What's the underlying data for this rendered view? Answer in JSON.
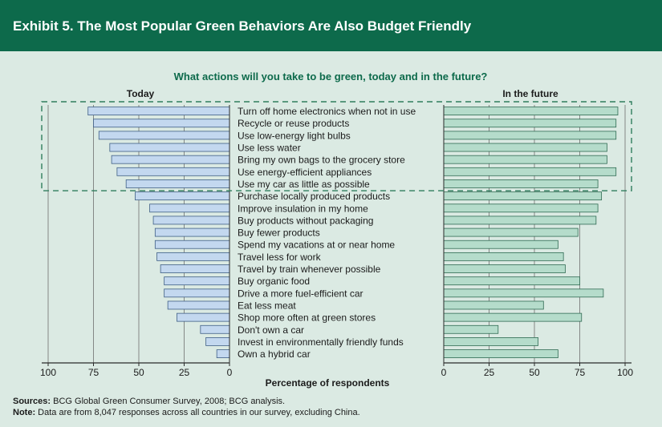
{
  "header": {
    "title": "Exhibit 5. The Most Popular Green Behaviors Are Also Budget Friendly"
  },
  "footer": {
    "sources_label": "Sources:",
    "sources_text": "BCG Global Green Consumer Survey, 2008; BCG analysis.",
    "note_label": "Note:",
    "note_text": "Data are from 8,047 responses across all countries in our survey, excluding China."
  },
  "colors": {
    "header_bg": "#0d6a4b",
    "today_bar": "#c3d8ef",
    "future_bar": "#b5dccb",
    "highlight_box": "#2f7d5d"
  },
  "chart_data": {
    "type": "bar",
    "title": "What actions will you take to be green, today and in the future?",
    "xlabel": "Percentage of respondents",
    "panels": [
      "Today",
      "In the future"
    ],
    "categories": [
      "Turn off home electronics when not in use",
      "Recycle or reuse products",
      "Use low-energy light bulbs",
      "Use less water",
      "Bring my own bags to the grocery store",
      "Use energy-efficient appliances",
      "Use my car as little as possible",
      "Purchase locally produced products",
      "Improve insulation in my home",
      "Buy products without packaging",
      "Buy fewer products",
      "Spend my vacations at or near home",
      "Travel less for work",
      "Travel by train whenever possible",
      "Buy organic food",
      "Drive a more fuel-efficient car",
      "Eat less meat",
      "Shop more often at green stores",
      "Don't own a car",
      "Invest in environmentally friendly funds",
      "Own a hybrid car"
    ],
    "series": [
      {
        "name": "Today",
        "values": [
          78,
          75,
          72,
          66,
          65,
          62,
          57,
          52,
          44,
          42,
          41,
          41,
          40,
          38,
          36,
          36,
          34,
          29,
          16,
          13,
          7
        ]
      },
      {
        "name": "In the future",
        "values": [
          96,
          95,
          95,
          90,
          90,
          95,
          85,
          87,
          85,
          84,
          74,
          63,
          66,
          67,
          75,
          88,
          55,
          76,
          30,
          52,
          63
        ]
      }
    ],
    "xlim": [
      0,
      100
    ],
    "xticks_today": [
      100,
      75,
      50,
      25,
      0
    ],
    "xticks_future": [
      0,
      25,
      50,
      75,
      100
    ],
    "highlighted_rows": 7
  }
}
